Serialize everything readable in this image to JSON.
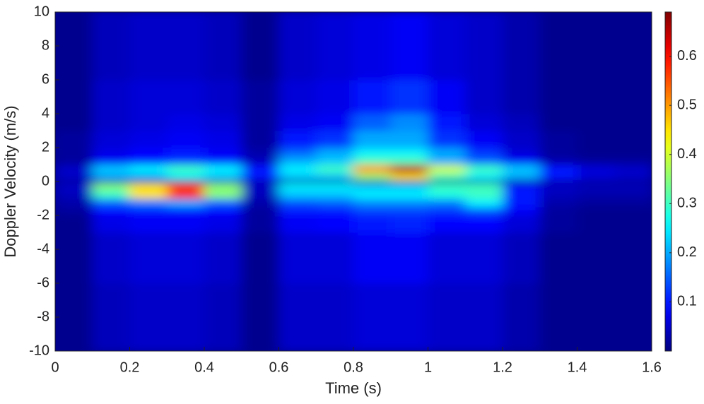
{
  "chart_data": {
    "type": "heatmap",
    "xlabel": "Time (s)",
    "ylabel": "Doppler Velocity (m/s)",
    "xlim": [
      0,
      1.6
    ],
    "xticks": [
      0,
      0.2,
      0.4,
      0.6,
      0.8,
      1,
      1.2,
      1.4,
      1.6
    ],
    "ylim": [
      -10,
      10
    ],
    "yticks": [
      -10,
      -8,
      -6,
      -4,
      -2,
      0,
      2,
      4,
      6,
      8,
      10
    ],
    "colormap": "jet",
    "clim": [
      0,
      0.69
    ],
    "cticks": [
      0.1,
      0.2,
      0.3,
      0.4,
      0.5,
      0.6
    ],
    "x_edges": [
      0,
      0.1,
      0.2,
      0.3,
      0.4,
      0.5,
      0.6,
      0.7,
      0.8,
      0.9,
      1.0,
      1.1,
      1.2,
      1.3,
      1.4,
      1.5,
      1.6
    ],
    "y_edges": [
      -10,
      -6,
      -3,
      -2,
      -1.5,
      -1,
      -0.5,
      -0.1,
      0.1,
      0.5,
      1,
      1.5,
      2,
      3,
      4,
      6,
      10
    ],
    "z": [
      [
        0.01,
        0.04,
        0.05,
        0.05,
        0.04,
        0.01,
        0.05,
        0.05,
        0.06,
        0.06,
        0.05,
        0.05,
        0.03,
        0.01,
        0.01,
        0.01
      ],
      [
        0.01,
        0.05,
        0.06,
        0.06,
        0.05,
        0.01,
        0.06,
        0.06,
        0.08,
        0.08,
        0.06,
        0.06,
        0.04,
        0.01,
        0.01,
        0.01
      ],
      [
        0.01,
        0.07,
        0.08,
        0.08,
        0.07,
        0.02,
        0.08,
        0.09,
        0.1,
        0.11,
        0.09,
        0.09,
        0.06,
        0.02,
        0.01,
        0.01
      ],
      [
        0.02,
        0.09,
        0.1,
        0.1,
        0.09,
        0.02,
        0.1,
        0.1,
        0.13,
        0.13,
        0.12,
        0.14,
        0.08,
        0.02,
        0.01,
        0.01
      ],
      [
        0.03,
        0.15,
        0.17,
        0.2,
        0.15,
        0.03,
        0.14,
        0.15,
        0.18,
        0.18,
        0.17,
        0.25,
        0.1,
        0.03,
        0.02,
        0.02
      ],
      [
        0.04,
        0.3,
        0.45,
        0.6,
        0.35,
        0.04,
        0.22,
        0.22,
        0.25,
        0.25,
        0.28,
        0.3,
        0.1,
        0.04,
        0.03,
        0.03
      ],
      [
        0.05,
        0.35,
        0.45,
        0.55,
        0.35,
        0.05,
        0.25,
        0.25,
        0.22,
        0.22,
        0.3,
        0.3,
        0.1,
        0.05,
        0.04,
        0.04
      ],
      [
        0.01,
        0.01,
        0.01,
        0.01,
        0.01,
        0.01,
        0.01,
        0.01,
        0.01,
        0.01,
        0.01,
        0.01,
        0.01,
        0.01,
        0.01,
        0.01
      ],
      [
        0.05,
        0.2,
        0.2,
        0.25,
        0.22,
        0.1,
        0.22,
        0.22,
        0.35,
        0.45,
        0.3,
        0.25,
        0.2,
        0.1,
        0.06,
        0.05
      ],
      [
        0.05,
        0.22,
        0.25,
        0.3,
        0.25,
        0.1,
        0.25,
        0.3,
        0.5,
        0.65,
        0.4,
        0.3,
        0.22,
        0.1,
        0.06,
        0.05
      ],
      [
        0.02,
        0.08,
        0.1,
        0.12,
        0.1,
        0.04,
        0.2,
        0.22,
        0.3,
        0.3,
        0.2,
        0.15,
        0.08,
        0.03,
        0.02,
        0.02
      ],
      [
        0.02,
        0.07,
        0.09,
        0.1,
        0.08,
        0.03,
        0.15,
        0.2,
        0.25,
        0.25,
        0.2,
        0.12,
        0.06,
        0.02,
        0.01,
        0.01
      ],
      [
        0.02,
        0.06,
        0.07,
        0.08,
        0.07,
        0.02,
        0.1,
        0.12,
        0.2,
        0.2,
        0.12,
        0.08,
        0.05,
        0.02,
        0.01,
        0.01
      ],
      [
        0.01,
        0.05,
        0.06,
        0.07,
        0.06,
        0.02,
        0.07,
        0.08,
        0.15,
        0.18,
        0.1,
        0.06,
        0.04,
        0.01,
        0.01,
        0.01
      ],
      [
        0.01,
        0.05,
        0.06,
        0.06,
        0.05,
        0.02,
        0.06,
        0.07,
        0.1,
        0.12,
        0.08,
        0.05,
        0.03,
        0.01,
        0.01,
        0.01
      ],
      [
        0.01,
        0.04,
        0.05,
        0.05,
        0.04,
        0.01,
        0.05,
        0.06,
        0.07,
        0.08,
        0.06,
        0.05,
        0.03,
        0.01,
        0.01,
        0.01
      ]
    ]
  }
}
